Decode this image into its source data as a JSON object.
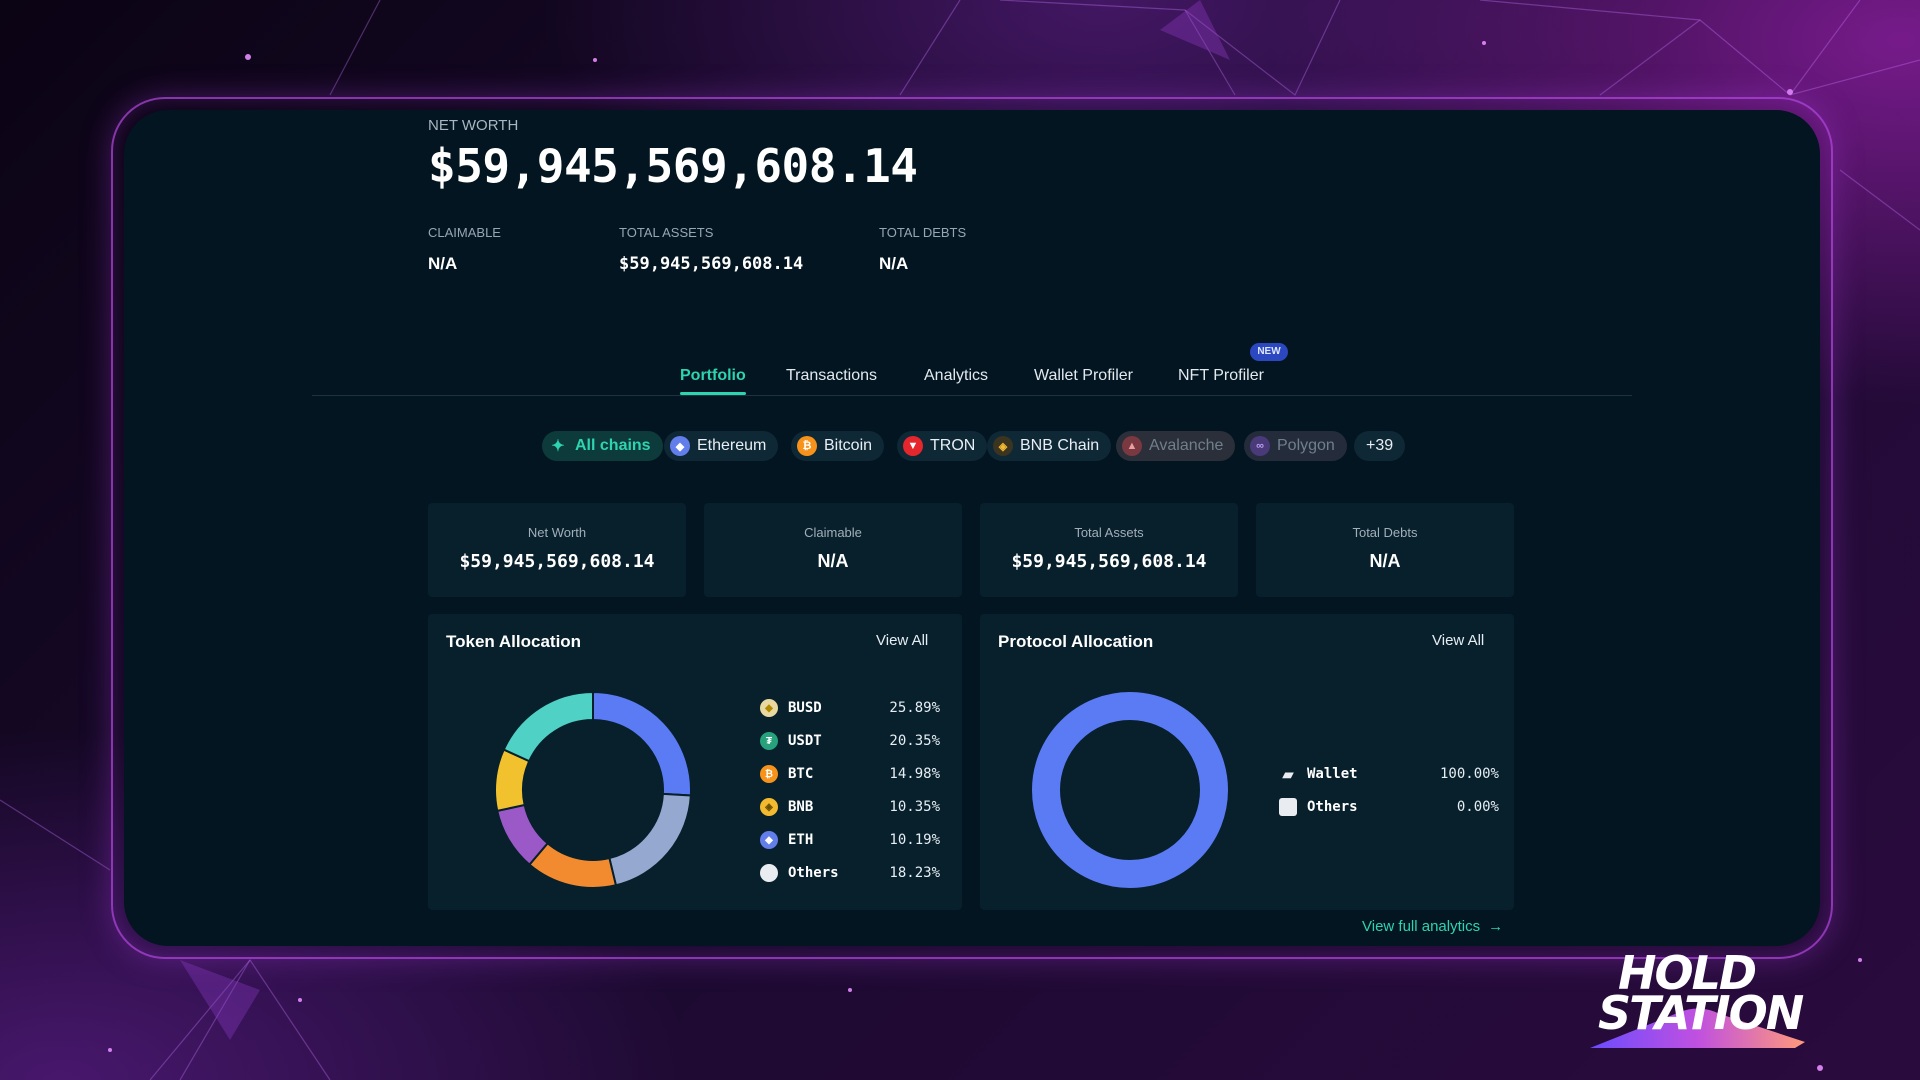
{
  "summary": {
    "net_worth_label": "NET WORTH",
    "net_worth_value": "$59,945,569,608.14",
    "stats": [
      {
        "label": "CLAIMABLE",
        "value": "N/A"
      },
      {
        "label": "TOTAL ASSETS",
        "value": "$59,945,569,608.14"
      },
      {
        "label": "TOTAL DEBTS",
        "value": "N/A"
      }
    ]
  },
  "tabs": [
    {
      "label": "Portfolio",
      "active": true
    },
    {
      "label": "Transactions"
    },
    {
      "label": "Analytics"
    },
    {
      "label": "Wallet Profiler"
    },
    {
      "label": "NFT Profiler",
      "badge": "NEW"
    }
  ],
  "chains": [
    {
      "label": "All chains",
      "icon": "sparkle-icon",
      "color": "#2ed3b0",
      "active": true
    },
    {
      "label": "Ethereum",
      "icon": "ethereum-icon",
      "color": "#627eea"
    },
    {
      "label": "Bitcoin",
      "icon": "bitcoin-icon",
      "color": "#f7931a"
    },
    {
      "label": "TRON",
      "icon": "tron-icon",
      "color": "#e5262d"
    },
    {
      "label": "BNB Chain",
      "icon": "bnb-icon",
      "color": "#f3ba2f"
    },
    {
      "label": "Avalanche",
      "icon": "avalanche-icon",
      "color": "#e84142",
      "dim": true
    },
    {
      "label": "Polygon",
      "icon": "polygon-icon",
      "color": "#8247e5",
      "dim": true
    },
    {
      "label": "+39"
    }
  ],
  "cards": [
    {
      "label": "Net Worth",
      "value": "$59,945,569,608.14"
    },
    {
      "label": "Claimable",
      "value": "N/A"
    },
    {
      "label": "Total Assets",
      "value": "$59,945,569,608.14"
    },
    {
      "label": "Total Debts",
      "value": "N/A"
    }
  ],
  "token_allocation": {
    "title": "Token Allocation",
    "view_all": "View All",
    "items": [
      {
        "name": "BUSD",
        "percent": "25.89%",
        "value": 25.89,
        "color": "#5b7bf5",
        "icon_color": "#f0b90b"
      },
      {
        "name": "USDT",
        "percent": "20.35%",
        "value": 20.35,
        "color": "#95a8d0",
        "icon_color": "#26a17b"
      },
      {
        "name": "BTC",
        "percent": "14.98%",
        "value": 14.98,
        "color": "#f28b30",
        "icon_color": "#f7931a"
      },
      {
        "name": "BNB",
        "percent": "10.35%",
        "value": 10.35,
        "color": "#9b59c8",
        "icon_color": "#f3ba2f"
      },
      {
        "name": "ETH",
        "percent": "10.19%",
        "value": 10.19,
        "color": "#f2c12e",
        "icon_color": "#627eea"
      },
      {
        "name": "Others",
        "percent": "18.23%",
        "value": 18.23,
        "color": "#4fd1c5",
        "icon_color": "#e9edf2"
      }
    ]
  },
  "protocol_allocation": {
    "title": "Protocol Allocation",
    "view_all": "View All",
    "items": [
      {
        "name": "Wallet",
        "percent": "100.00%",
        "value": 100,
        "color": "#5b7bf5",
        "icon": "wallet-icon"
      },
      {
        "name": "Others",
        "percent": "0.00%",
        "value": 0,
        "color": "#e9edf2"
      }
    ]
  },
  "view_full_analytics": "View full analytics",
  "logo": {
    "line1": "HOLD",
    "line2": "STATION"
  }
}
